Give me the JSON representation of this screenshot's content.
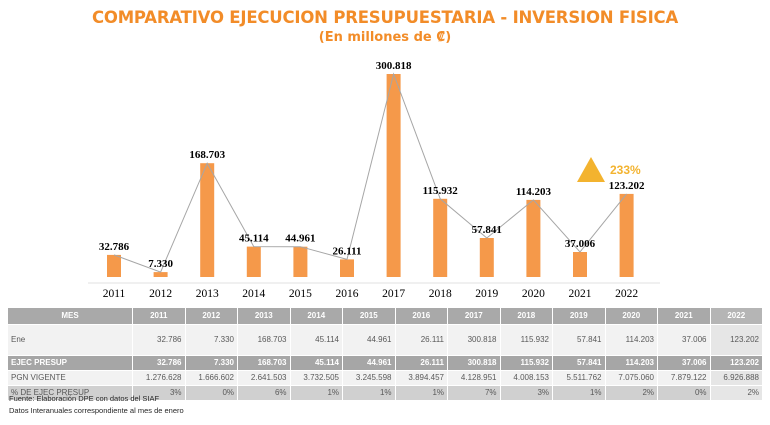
{
  "title": "COMPARATIVO EJECUCION PRESUPUESTARIA - INVERSION FISICA",
  "subtitle": "(En millones de ₡)",
  "colors": {
    "title": "#f28c28",
    "bar": "#f5994a",
    "bar_stroke": "#f28c28",
    "line": "#a6a6a6",
    "triangle": "#f3b32f",
    "annotation": "#f3b32f"
  },
  "chart_data": {
    "type": "bar",
    "categories": [
      "2011",
      "2012",
      "2013",
      "2014",
      "2015",
      "2016",
      "2017",
      "2018",
      "2019",
      "2020",
      "2021",
      "2022"
    ],
    "values": [
      32.786,
      7.33,
      168.703,
      45.114,
      44.961,
      26.111,
      300.818,
      115.932,
      57.841,
      114.203,
      37.006,
      123.202
    ],
    "value_labels": [
      "32.786",
      "7.330",
      "168.703",
      "45.114",
      "44.961",
      "26.111",
      "300.818",
      "115.932",
      "57.841",
      "114.203",
      "37.006",
      "123.202"
    ],
    "line_overlay": true,
    "ylim": [
      0,
      300.818
    ],
    "grid": false,
    "annotation": {
      "text": "233%",
      "icon": "triangle-up-icon",
      "near": "2022"
    }
  },
  "table": {
    "header_label": "MES",
    "years": [
      "2011",
      "2012",
      "2013",
      "2014",
      "2015",
      "2016",
      "2017",
      "2018",
      "2019",
      "2020",
      "2021",
      "2022"
    ],
    "rows": [
      {
        "id": "ene",
        "label": "Ene",
        "values": [
          "32.786",
          "7.330",
          "168.703",
          "45.114",
          "44.961",
          "26.111",
          "300.818",
          "115.932",
          "57.841",
          "114.203",
          "37.006",
          "123.202"
        ]
      },
      {
        "id": "ejec",
        "label": "EJEC PRESUP",
        "values": [
          "32.786",
          "7.330",
          "168.703",
          "45.114",
          "44.961",
          "26.111",
          "300.818",
          "115.932",
          "57.841",
          "114.203",
          "37.006",
          "123.202"
        ]
      },
      {
        "id": "pgn",
        "label": "PGN VIGENTE",
        "values": [
          "1.276.628",
          "1.666.602",
          "2.641.503",
          "3.732.505",
          "3.245.598",
          "3.894.457",
          "4.128.951",
          "4.008.153",
          "5.511.762",
          "7.075.060",
          "7.879.122",
          "6.926.888"
        ]
      },
      {
        "id": "pct",
        "label": "% DE EJEC PRESUP",
        "values": [
          "3%",
          "0%",
          "6%",
          "1%",
          "1%",
          "1%",
          "7%",
          "3%",
          "1%",
          "2%",
          "0%",
          "2%"
        ]
      }
    ]
  },
  "footer": {
    "source": "Fuente: Elaboración DPE con datos del SIAF",
    "note": "Datos Interanuales correspondiente al mes de enero"
  }
}
